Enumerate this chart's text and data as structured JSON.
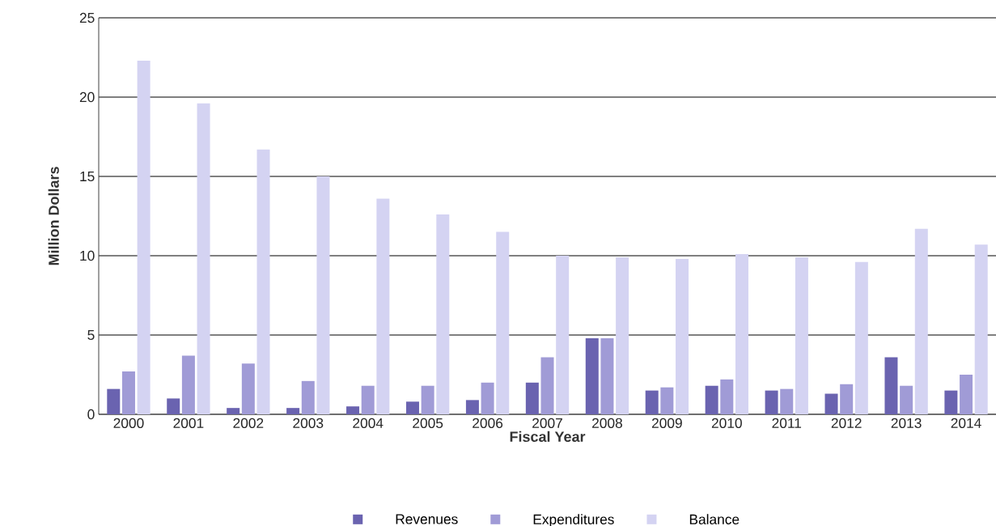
{
  "chart_data": {
    "type": "bar",
    "xlabel": "Fiscal Year",
    "ylabel": "Million Dollars",
    "categories": [
      "2000",
      "2001",
      "2002",
      "2003",
      "2004",
      "2005",
      "2006",
      "2007",
      "2008",
      "2009",
      "2010",
      "2011",
      "2012",
      "2013",
      "2014"
    ],
    "series": [
      {
        "name": "Revenues",
        "color": "#6a63b0",
        "values": [
          1.6,
          1.0,
          0.4,
          0.4,
          0.5,
          0.8,
          0.9,
          2.0,
          4.8,
          1.5,
          1.8,
          1.5,
          1.3,
          3.6,
          1.5
        ]
      },
      {
        "name": "Expenditures",
        "color": "#a09bd6",
        "values": [
          2.7,
          3.7,
          3.2,
          2.1,
          1.8,
          1.8,
          2.0,
          3.6,
          4.8,
          1.7,
          2.2,
          1.6,
          1.9,
          1.8,
          2.5
        ]
      },
      {
        "name": "Balance",
        "color": "#d4d3f2",
        "values": [
          22.3,
          19.6,
          16.7,
          15.0,
          13.6,
          12.6,
          11.5,
          10.0,
          9.9,
          9.8,
          10.1,
          9.9,
          9.6,
          11.7,
          10.7
        ]
      }
    ],
    "ylim": [
      0,
      25
    ],
    "yticks": [
      0,
      5,
      10,
      15,
      20,
      25
    ],
    "grid": "y",
    "legend": "bottom"
  }
}
